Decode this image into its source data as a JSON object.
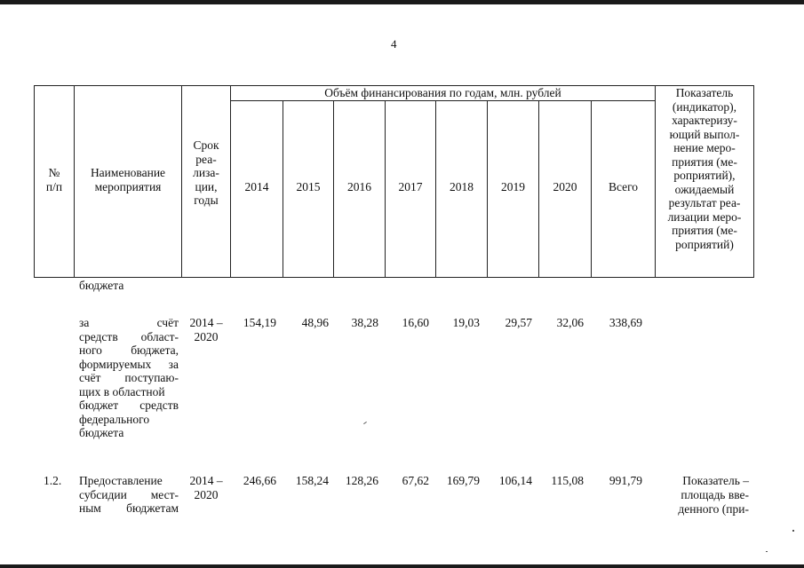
{
  "page_number": "4",
  "header": {
    "no": "№\nп/п",
    "name": "Наименование\nмероприятия",
    "term": "Срок\nреа-\nлиза-\nции,\nгоды",
    "funding_group": "Объём финансирования по годам, млн. рублей",
    "years": [
      "2014",
      "2015",
      "2016",
      "2017",
      "2018",
      "2019",
      "2020"
    ],
    "total": "Всего",
    "indicator": "Показатель\n(индикатор),\nхарактеризу-\nющий выпол-\nнение меро-\nприятия (ме-\nроприятий),\nожидаемый\nрезультат реа-\nлизации меро-\nприятия (ме-\nроприятий)"
  },
  "rows": [
    {
      "name_tail": "бюджета"
    },
    {
      "name_lines": [
        "за счёт",
        "средств област-",
        "ного бюджета,",
        "формируемых за",
        "счёт поступаю-",
        "щих в областной",
        "бюджет средств",
        "федерального",
        "бюджета"
      ],
      "term_lines": [
        "2014 –",
        "2020"
      ],
      "values": [
        "154,19",
        "48,96",
        "38,28",
        "16,60",
        "19,03",
        "29,57",
        "32,06"
      ],
      "total": "338,69"
    },
    {
      "no": "1.2.",
      "name_lines": [
        "Предоставление",
        "субсидии мест-",
        "ным бюджетам"
      ],
      "term_lines": [
        "2014 –",
        "2020"
      ],
      "values": [
        "246,66",
        "158,24",
        "128,26",
        "67,62",
        "169,79",
        "106,14",
        "115,08"
      ],
      "total": "991,79",
      "indicator_lines": [
        "Показатель –",
        "площадь вве-",
        "денного (при-"
      ]
    }
  ]
}
